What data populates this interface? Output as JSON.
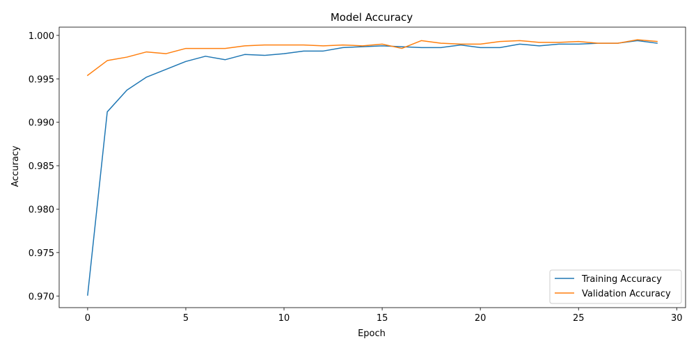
{
  "chart_data": {
    "type": "line",
    "title": "Model Accuracy",
    "xlabel": "Epoch",
    "ylabel": "Accuracy",
    "xlim": [
      -1.45,
      30.45
    ],
    "ylim": [
      0.96866,
      1.00095
    ],
    "xticks": [
      0,
      5,
      10,
      15,
      20,
      25,
      30
    ],
    "yticks": [
      0.97,
      0.975,
      0.98,
      0.985,
      0.99,
      0.995,
      1.0
    ],
    "ytick_labels": [
      "0.970",
      "0.975",
      "0.980",
      "0.985",
      "0.990",
      "0.995",
      "1.000"
    ],
    "grid": false,
    "legend_position": "lower right",
    "x": [
      0,
      1,
      2,
      3,
      4,
      5,
      6,
      7,
      8,
      9,
      10,
      11,
      12,
      13,
      14,
      15,
      16,
      17,
      18,
      19,
      20,
      21,
      22,
      23,
      24,
      25,
      26,
      27,
      28,
      29
    ],
    "series": [
      {
        "name": "Training Accuracy",
        "color": "#1f77b4",
        "values": [
          0.9701,
          0.9912,
          0.9937,
          0.9952,
          0.9961,
          0.997,
          0.9976,
          0.9972,
          0.9978,
          0.9977,
          0.9979,
          0.9982,
          0.9982,
          0.9986,
          0.9987,
          0.9988,
          0.9987,
          0.9986,
          0.9986,
          0.9989,
          0.9986,
          0.9986,
          0.999,
          0.9988,
          0.999,
          0.999,
          0.9991,
          0.9991,
          0.9994,
          0.9991
        ]
      },
      {
        "name": "Validation Accuracy",
        "color": "#ff7f0e",
        "values": [
          0.9954,
          0.9971,
          0.9975,
          0.9981,
          0.9979,
          0.9985,
          0.9985,
          0.9985,
          0.9988,
          0.9989,
          0.9989,
          0.9989,
          0.9988,
          0.9989,
          0.9988,
          0.999,
          0.9985,
          0.9994,
          0.9991,
          0.999,
          0.999,
          0.9993,
          0.9994,
          0.9992,
          0.9992,
          0.9993,
          0.9991,
          0.9991,
          0.9995,
          0.9993
        ]
      }
    ]
  }
}
